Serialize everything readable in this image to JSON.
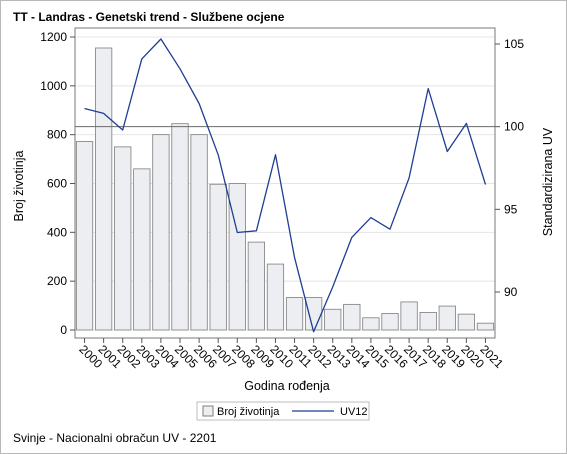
{
  "title": "TT - Landras - Genetski trend - Službene ocjene",
  "footnote": "Svinje - Nacionalni obračun UV - 2201",
  "chart_data": {
    "type": "bar",
    "categories": [
      "2000",
      "2001",
      "2002",
      "2003",
      "2004",
      "2005",
      "2006",
      "2007",
      "2008",
      "2009",
      "2010",
      "2011",
      "2012",
      "2013",
      "2014",
      "2015",
      "2016",
      "2017",
      "2018",
      "2019",
      "2020",
      "2021"
    ],
    "series": [
      {
        "name": "Broj životinja",
        "axis": "left",
        "type": "bar",
        "values": [
          772,
          1155,
          750,
          660,
          800,
          845,
          800,
          597,
          600,
          360,
          270,
          133,
          133,
          85,
          105,
          50,
          68,
          115,
          72,
          98,
          65,
          28
        ]
      },
      {
        "name": "UV12",
        "axis": "right",
        "type": "line",
        "values": [
          101.1,
          100.8,
          99.8,
          104.1,
          105.3,
          103.5,
          101.4,
          98.3,
          93.6,
          93.7,
          98.3,
          92.1,
          87.6,
          90.3,
          93.3,
          94.5,
          93.8,
          96.9,
          102.3,
          98.5,
          100.2,
          96.5
        ]
      }
    ],
    "xlabel": "Godina rođenja",
    "ylabel_left": "Broj životinja",
    "ylabel_right": "Standardizirana UV",
    "ylim_left": [
      0,
      1250
    ],
    "yticks_left": [
      0,
      200,
      400,
      600,
      800,
      1000,
      1200
    ],
    "ylim_right": [
      87,
      105.5
    ],
    "yticks_right": [
      90,
      95,
      100,
      105
    ],
    "reference_line_right": 100,
    "grid": true,
    "legend_position": "bottom",
    "colors": {
      "bar_fill": "#eceef2",
      "bar_stroke": "#7d7d7d",
      "line": "#1f3f94"
    }
  }
}
